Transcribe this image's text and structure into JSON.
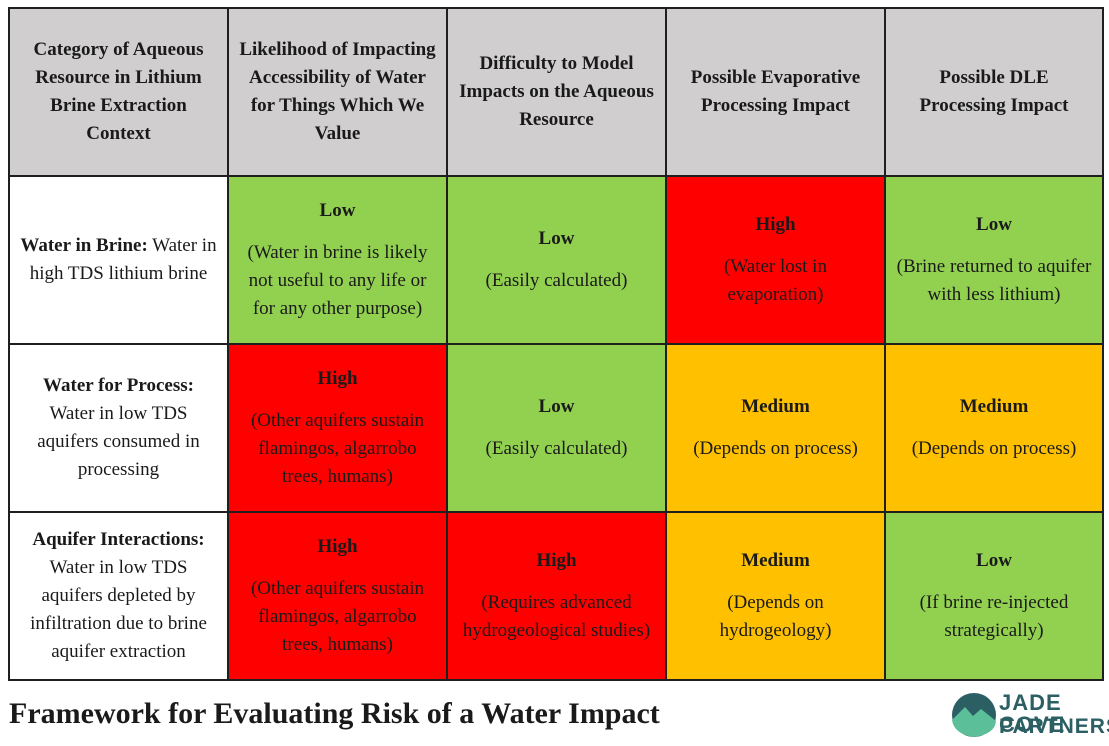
{
  "headers": [
    "Category of Aqueous Resource in Lithium Brine Extraction Context",
    "Likelihood of Impacting Accessibility of Water for Things Which We Value",
    "Difficulty to Model Impacts on the Aqueous Resource",
    "Possible Evaporative Processing Impact",
    "Possible DLE Processing Impact"
  ],
  "rows": [
    {
      "label": "Water in Brine:",
      "desc": " Water in high TDS lithium brine",
      "cells": [
        {
          "level": "Low",
          "note": "(Water in brine is likely not useful to any life or for any other purpose)",
          "color": "#92d050"
        },
        {
          "level": "Low",
          "note": "(Easily calculated)",
          "color": "#92d050"
        },
        {
          "level": "High",
          "note": "(Water lost in evaporation)",
          "color": "#ff0000"
        },
        {
          "level": "Low",
          "note": "(Brine returned to aquifer with less lithium)",
          "color": "#92d050"
        }
      ]
    },
    {
      "label": "Water for Process:",
      "desc": "Water in low TDS aquifers consumed in processing",
      "cells": [
        {
          "level": "High",
          "note": "(Other aquifers sustain flamingos, algarrobo trees, humans)",
          "color": "#ff0000"
        },
        {
          "level": "Low",
          "note": "(Easily calculated)",
          "color": "#92d050"
        },
        {
          "level": "Medium",
          "note": "(Depends on process)",
          "color": "#ffc000"
        },
        {
          "level": "Medium",
          "note": "(Depends on process)",
          "color": "#ffc000"
        }
      ]
    },
    {
      "label": "Aquifer Interactions:",
      "desc": "Water in low TDS aquifers depleted by infiltration due to brine aquifer extraction",
      "cells": [
        {
          "level": "High",
          "note": "(Other aquifers sustain flamingos, algarrobo trees, humans)",
          "color": "#ff0000"
        },
        {
          "level": "High",
          "note": "(Requires advanced hydrogeological studies)",
          "color": "#ff0000"
        },
        {
          "level": "Medium",
          "note": "(Depends on hydrogeology)",
          "color": "#ffc000"
        },
        {
          "level": "Low",
          "note": "(If brine re-injected strategically)",
          "color": "#92d050"
        }
      ]
    }
  ],
  "footer": {
    "title": "Framework for Evaluating Risk of  a Water Impact",
    "logo_line1": "JADE COVE",
    "logo_line2": "PARTNERS",
    "logo_colors": [
      "#2c5f63",
      "#5bbf9a"
    ]
  }
}
